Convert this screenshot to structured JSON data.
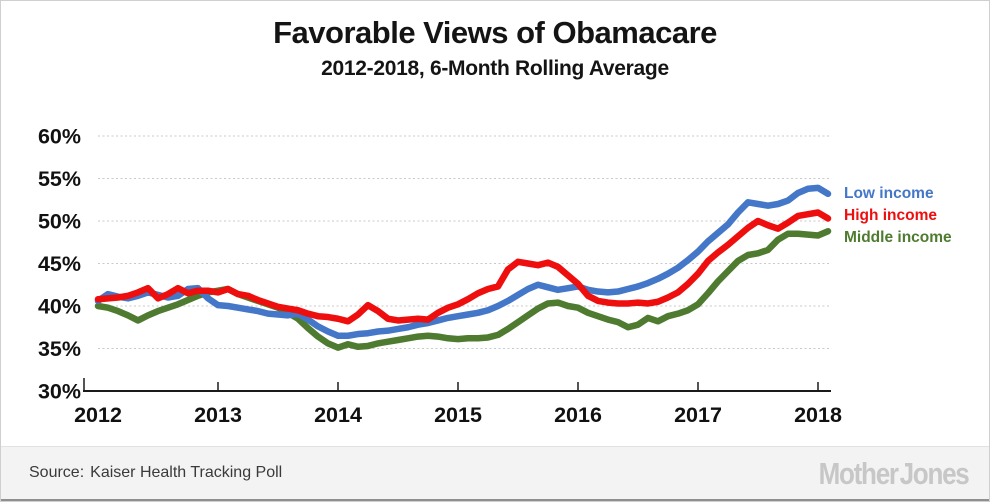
{
  "header": {
    "title": "Favorable Views of Obamacare",
    "subtitle": "2012-2018, 6-Month Rolling Average"
  },
  "footer": {
    "source_label": "Source:",
    "source_text": "Kaiser Health Tracking Poll",
    "brand": "Mother Jones"
  },
  "chart_data": {
    "type": "line",
    "title": "Favorable Views of Obamacare",
    "subtitle": "2012-2018, 6-Month Rolling Average",
    "x_start": "2012-01",
    "x_step_months": 1,
    "x_end": "2018-02",
    "xticks": [
      2012,
      2013,
      2014,
      2015,
      2016,
      2017,
      2018
    ],
    "yticks": [
      {
        "value": 60,
        "label": "60%"
      },
      {
        "value": 55,
        "label": "55%"
      },
      {
        "value": 50,
        "label": "50%"
      },
      {
        "value": 45,
        "label": "45%"
      },
      {
        "value": 40,
        "label": "40%"
      },
      {
        "value": 35,
        "label": "35%"
      },
      {
        "value": 30,
        "label": "30%"
      }
    ],
    "ylim": [
      30,
      60
    ],
    "grid": "horizontal-dotted",
    "legend_position": "right-of-line-ends",
    "axis_color": "#1a1a1a",
    "gridline_color": "#c9c9c9",
    "series": [
      {
        "name": "Low income",
        "color": "#4477c8",
        "values": [
          40.6,
          41.4,
          41.1,
          40.9,
          41.2,
          41.6,
          41.3,
          41.0,
          41.2,
          42.0,
          42.1,
          40.9,
          40.1,
          40.0,
          39.8,
          39.6,
          39.4,
          39.1,
          39.0,
          38.9,
          39.1,
          38.4,
          37.6,
          37.0,
          36.5,
          36.5,
          36.7,
          36.8,
          37.0,
          37.1,
          37.3,
          37.5,
          37.8,
          38.0,
          38.3,
          38.6,
          38.8,
          39.0,
          39.2,
          39.5,
          40.0,
          40.6,
          41.3,
          42.0,
          42.5,
          42.2,
          41.9,
          42.1,
          42.3,
          41.9,
          41.7,
          41.6,
          41.7,
          42.0,
          42.3,
          42.7,
          43.2,
          43.8,
          44.5,
          45.4,
          46.4,
          47.6,
          48.6,
          49.6,
          51.0,
          52.2,
          52.0,
          51.8,
          52.0,
          52.4,
          53.3,
          53.8,
          53.9,
          53.2
        ]
      },
      {
        "name": "High income",
        "color": "#ee0e0e",
        "values": [
          40.8,
          40.9,
          41.0,
          41.2,
          41.6,
          42.1,
          40.9,
          41.4,
          42.1,
          41.5,
          41.8,
          41.8,
          41.6,
          42.0,
          41.4,
          41.2,
          40.7,
          40.3,
          39.9,
          39.7,
          39.5,
          39.1,
          38.8,
          38.7,
          38.5,
          38.2,
          39.0,
          40.1,
          39.4,
          38.5,
          38.3,
          38.4,
          38.5,
          38.4,
          39.2,
          39.8,
          40.2,
          40.8,
          41.5,
          42.0,
          42.3,
          44.3,
          45.2,
          45.0,
          44.8,
          45.1,
          44.6,
          43.6,
          42.6,
          41.2,
          40.6,
          40.4,
          40.3,
          40.3,
          40.4,
          40.3,
          40.5,
          41.0,
          41.6,
          42.6,
          43.8,
          45.3,
          46.3,
          47.2,
          48.2,
          49.2,
          50.0,
          49.5,
          49.1,
          49.8,
          50.6,
          50.8,
          51.0,
          50.3
        ]
      },
      {
        "name": "Middle income",
        "color": "#4e7b2f",
        "values": [
          40.0,
          39.8,
          39.4,
          38.9,
          38.3,
          38.9,
          39.4,
          39.8,
          40.2,
          40.7,
          41.2,
          41.6,
          41.8,
          42.0,
          41.4,
          41.0,
          40.6,
          40.2,
          39.8,
          39.2,
          38.5,
          37.4,
          36.4,
          35.6,
          35.1,
          35.5,
          35.2,
          35.3,
          35.6,
          35.8,
          36.0,
          36.2,
          36.4,
          36.5,
          36.4,
          36.2,
          36.1,
          36.2,
          36.2,
          36.3,
          36.6,
          37.3,
          38.1,
          38.9,
          39.7,
          40.3,
          40.4,
          40.0,
          39.8,
          39.2,
          38.8,
          38.4,
          38.1,
          37.5,
          37.8,
          38.6,
          38.2,
          38.8,
          39.1,
          39.5,
          40.2,
          41.5,
          42.9,
          44.1,
          45.3,
          46.0,
          46.2,
          46.6,
          47.8,
          48.5,
          48.5,
          48.4,
          48.3,
          48.8
        ]
      }
    ]
  }
}
